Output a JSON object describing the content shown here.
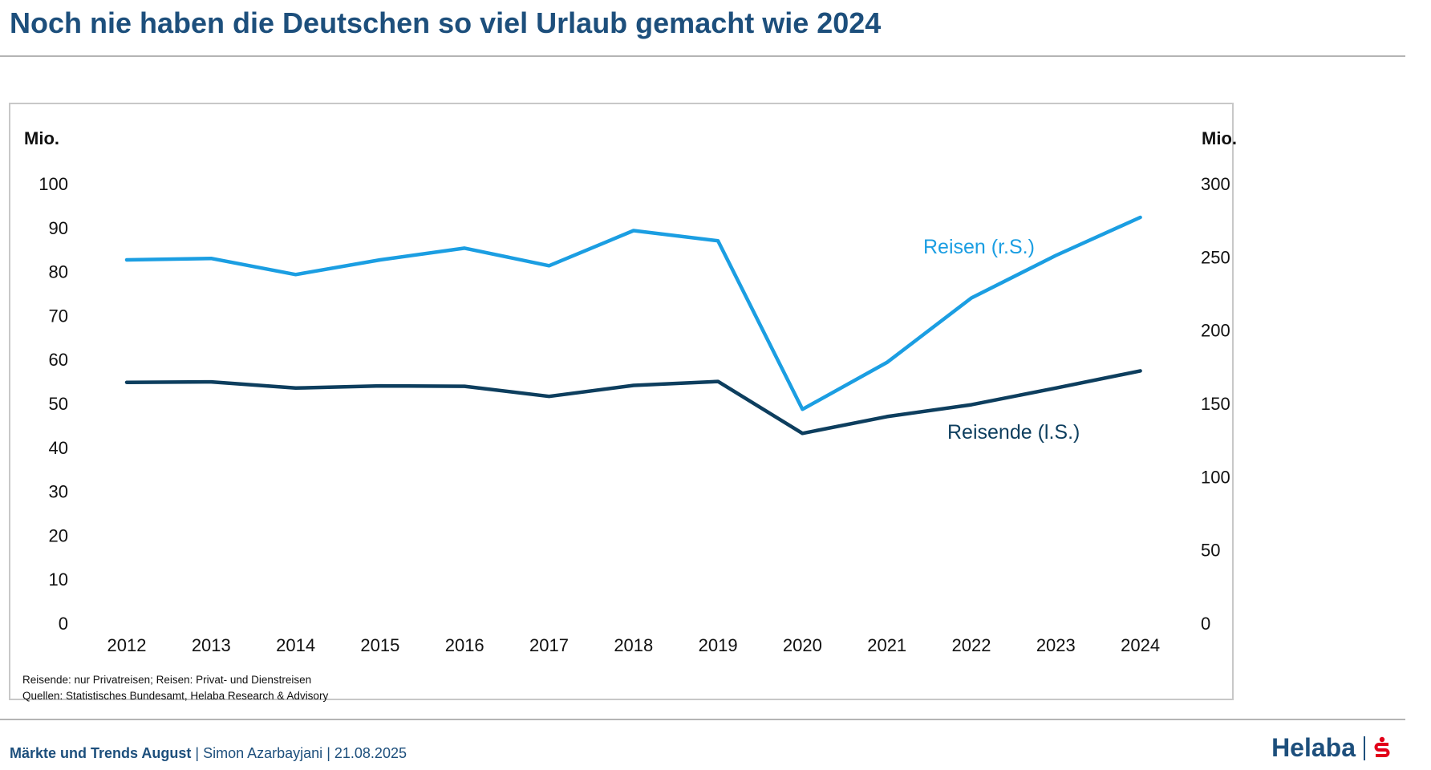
{
  "title": "Noch nie haben die Deutschen so viel Urlaub gemacht wie 2024",
  "chart_data": {
    "type": "line",
    "categories": [
      "2012",
      "2013",
      "2014",
      "2015",
      "2016",
      "2017",
      "2018",
      "2019",
      "2020",
      "2021",
      "2022",
      "2023",
      "2024"
    ],
    "left_axis": {
      "unit": "Mio.",
      "ylim": [
        0,
        100
      ],
      "ticks": [
        "0",
        "10",
        "20",
        "30",
        "40",
        "50",
        "60",
        "70",
        "80",
        "90",
        "100"
      ]
    },
    "right_axis": {
      "unit": "Mio.",
      "ylim": [
        0,
        300
      ],
      "ticks": [
        "0",
        "50",
        "100",
        "150",
        "200",
        "250",
        "300"
      ]
    },
    "series": [
      {
        "name": "Reisen (r.S.)",
        "axis": "right",
        "color": "#1b9ee2",
        "values": [
          248,
          249,
          238,
          248,
          256,
          244,
          268,
          261,
          146,
          178,
          222,
          251,
          277
        ]
      },
      {
        "name": "Reisende (l.S.)",
        "axis": "left",
        "color": "#0d3e5e",
        "values": [
          54.8,
          54.9,
          53.5,
          54.0,
          53.9,
          51.6,
          54.1,
          55.0,
          43.2,
          47.0,
          49.7,
          53.5,
          57.4
        ]
      }
    ],
    "grid": false,
    "legend": "inline labels"
  },
  "footnotes": {
    "line1": "Reisende: nur Privatreisen; Reisen: Privat- und Dienstreisen",
    "line2": "Quellen: Statistisches Bundesamt, Helaba Research & Advisory"
  },
  "footer": {
    "publication": "Märkte und Trends August",
    "author": "Simon Azarbayjani",
    "date": "21.08.2025",
    "separator": "|"
  },
  "logo": {
    "text": "Helaba",
    "icon": "sparkasse-s-icon"
  }
}
